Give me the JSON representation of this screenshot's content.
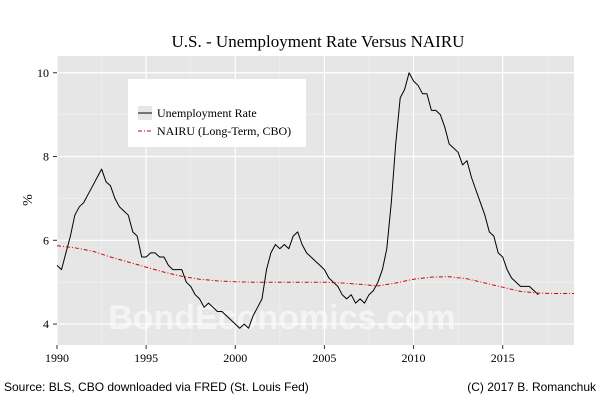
{
  "chart_data": {
    "type": "line",
    "title": "U.S. - Unemployment Rate Versus NAIRU",
    "xlabel": "",
    "ylabel": "%",
    "xlim": [
      1990,
      2019
    ],
    "ylim": [
      3.5,
      10.4
    ],
    "x_ticks": [
      1990,
      1995,
      2000,
      2005,
      2010,
      2015
    ],
    "y_ticks": [
      4,
      6,
      8,
      10
    ],
    "grid": true,
    "legend_position": "top-left",
    "series": [
      {
        "name": "Unemployment Rate",
        "color": "#000000",
        "style": "solid",
        "points": [
          [
            1990.0,
            5.4
          ],
          [
            1990.25,
            5.3
          ],
          [
            1990.5,
            5.7
          ],
          [
            1990.75,
            6.1
          ],
          [
            1991.0,
            6.6
          ],
          [
            1991.25,
            6.8
          ],
          [
            1991.5,
            6.9
          ],
          [
            1991.75,
            7.1
          ],
          [
            1992.0,
            7.3
          ],
          [
            1992.25,
            7.5
          ],
          [
            1992.5,
            7.7
          ],
          [
            1992.75,
            7.4
          ],
          [
            1993.0,
            7.3
          ],
          [
            1993.25,
            7.0
          ],
          [
            1993.5,
            6.8
          ],
          [
            1993.75,
            6.7
          ],
          [
            1994.0,
            6.6
          ],
          [
            1994.25,
            6.2
          ],
          [
            1994.5,
            6.1
          ],
          [
            1994.75,
            5.6
          ],
          [
            1995.0,
            5.6
          ],
          [
            1995.25,
            5.7
          ],
          [
            1995.5,
            5.7
          ],
          [
            1995.75,
            5.6
          ],
          [
            1996.0,
            5.6
          ],
          [
            1996.25,
            5.4
          ],
          [
            1996.5,
            5.3
          ],
          [
            1996.75,
            5.3
          ],
          [
            1997.0,
            5.3
          ],
          [
            1997.25,
            5.0
          ],
          [
            1997.5,
            4.9
          ],
          [
            1997.75,
            4.7
          ],
          [
            1998.0,
            4.6
          ],
          [
            1998.25,
            4.4
          ],
          [
            1998.5,
            4.5
          ],
          [
            1998.75,
            4.4
          ],
          [
            1999.0,
            4.3
          ],
          [
            1999.25,
            4.3
          ],
          [
            1999.5,
            4.2
          ],
          [
            1999.75,
            4.1
          ],
          [
            2000.0,
            4.0
          ],
          [
            2000.25,
            3.9
          ],
          [
            2000.5,
            4.0
          ],
          [
            2000.75,
            3.9
          ],
          [
            2001.0,
            4.2
          ],
          [
            2001.25,
            4.4
          ],
          [
            2001.5,
            4.6
          ],
          [
            2001.75,
            5.3
          ],
          [
            2002.0,
            5.7
          ],
          [
            2002.25,
            5.9
          ],
          [
            2002.5,
            5.8
          ],
          [
            2002.75,
            5.9
          ],
          [
            2003.0,
            5.8
          ],
          [
            2003.25,
            6.1
          ],
          [
            2003.5,
            6.2
          ],
          [
            2003.75,
            5.9
          ],
          [
            2004.0,
            5.7
          ],
          [
            2004.25,
            5.6
          ],
          [
            2004.5,
            5.5
          ],
          [
            2004.75,
            5.4
          ],
          [
            2005.0,
            5.3
          ],
          [
            2005.25,
            5.1
          ],
          [
            2005.5,
            5.0
          ],
          [
            2005.75,
            4.9
          ],
          [
            2006.0,
            4.7
          ],
          [
            2006.25,
            4.6
          ],
          [
            2006.5,
            4.7
          ],
          [
            2006.75,
            4.5
          ],
          [
            2007.0,
            4.6
          ],
          [
            2007.25,
            4.5
          ],
          [
            2007.5,
            4.7
          ],
          [
            2007.75,
            4.8
          ],
          [
            2008.0,
            5.0
          ],
          [
            2008.25,
            5.3
          ],
          [
            2008.5,
            5.8
          ],
          [
            2008.75,
            6.9
          ],
          [
            2009.0,
            8.3
          ],
          [
            2009.25,
            9.4
          ],
          [
            2009.5,
            9.6
          ],
          [
            2009.75,
            10.0
          ],
          [
            2010.0,
            9.8
          ],
          [
            2010.25,
            9.7
          ],
          [
            2010.5,
            9.5
          ],
          [
            2010.75,
            9.5
          ],
          [
            2011.0,
            9.1
          ],
          [
            2011.25,
            9.1
          ],
          [
            2011.5,
            9.0
          ],
          [
            2011.75,
            8.7
          ],
          [
            2012.0,
            8.3
          ],
          [
            2012.25,
            8.2
          ],
          [
            2012.5,
            8.1
          ],
          [
            2012.75,
            7.8
          ],
          [
            2013.0,
            7.9
          ],
          [
            2013.25,
            7.5
          ],
          [
            2013.5,
            7.2
          ],
          [
            2013.75,
            6.9
          ],
          [
            2014.0,
            6.6
          ],
          [
            2014.25,
            6.2
          ],
          [
            2014.5,
            6.1
          ],
          [
            2014.75,
            5.7
          ],
          [
            2015.0,
            5.6
          ],
          [
            2015.25,
            5.3
          ],
          [
            2015.5,
            5.1
          ],
          [
            2015.75,
            5.0
          ],
          [
            2016.0,
            4.9
          ],
          [
            2016.25,
            4.9
          ],
          [
            2016.5,
            4.9
          ],
          [
            2016.75,
            4.8
          ],
          [
            2017.0,
            4.7
          ]
        ]
      },
      {
        "name": "NAIRU (Long-Term, CBO)",
        "color": "#d40000",
        "style": "dashed",
        "points": [
          [
            1990.0,
            5.87
          ],
          [
            1991.0,
            5.82
          ],
          [
            1992.0,
            5.74
          ],
          [
            1993.0,
            5.6
          ],
          [
            1994.0,
            5.48
          ],
          [
            1995.0,
            5.36
          ],
          [
            1996.0,
            5.24
          ],
          [
            1997.0,
            5.14
          ],
          [
            1998.0,
            5.07
          ],
          [
            1999.0,
            5.03
          ],
          [
            2000.0,
            5.01
          ],
          [
            2001.0,
            5.0
          ],
          [
            2002.0,
            5.0
          ],
          [
            2003.0,
            5.0
          ],
          [
            2004.0,
            5.0
          ],
          [
            2005.0,
            5.0
          ],
          [
            2006.0,
            4.98
          ],
          [
            2007.0,
            4.95
          ],
          [
            2008.0,
            4.91
          ],
          [
            2009.0,
            4.98
          ],
          [
            2010.0,
            5.07
          ],
          [
            2011.0,
            5.12
          ],
          [
            2012.0,
            5.13
          ],
          [
            2013.0,
            5.08
          ],
          [
            2014.0,
            4.98
          ],
          [
            2015.0,
            4.88
          ],
          [
            2016.0,
            4.78
          ],
          [
            2017.0,
            4.74
          ],
          [
            2018.0,
            4.73
          ],
          [
            2019.0,
            4.73
          ]
        ]
      }
    ]
  },
  "watermark": "BondEconomics.com",
  "footer": {
    "source": "Source: BLS, CBO downloaded via FRED (St. Louis Fed)",
    "credit": "(C) 2017 B. Romanchuk"
  }
}
